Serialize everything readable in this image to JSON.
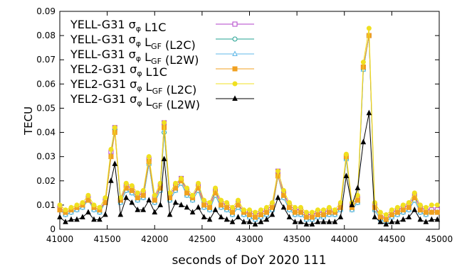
{
  "chart_data": {
    "type": "line",
    "title": "",
    "xlabel": "seconds of DoY 2020 111",
    "ylabel": "TECU",
    "xlim": [
      41000,
      45000
    ],
    "ylim": [
      0,
      0.09
    ],
    "x_ticks": [
      "41000",
      "41500",
      "42000",
      "42500",
      "43000",
      "43500",
      "44000",
      "44500",
      "45000"
    ],
    "y_ticks": [
      "0",
      "0.01",
      "0.02",
      "0.03",
      "0.04",
      "0.05",
      "0.06",
      "0.07",
      "0.08",
      "0.09"
    ],
    "grid": false,
    "legend_position": "top-left",
    "x": [
      41000,
      41060,
      41120,
      41180,
      41240,
      41300,
      41360,
      41420,
      41480,
      41540,
      41580,
      41640,
      41700,
      41760,
      41820,
      41880,
      41940,
      42000,
      42060,
      42100,
      42160,
      42220,
      42280,
      42340,
      42400,
      42460,
      42520,
      42580,
      42640,
      42700,
      42760,
      42820,
      42880,
      42940,
      43000,
      43060,
      43120,
      43180,
      43240,
      43300,
      43360,
      43420,
      43480,
      43540,
      43600,
      43660,
      43720,
      43780,
      43840,
      43900,
      43960,
      44020,
      44080,
      44140,
      44200,
      44260,
      44320,
      44380,
      44440,
      44500,
      44560,
      44620,
      44680,
      44740,
      44800,
      44860,
      44920,
      44980
    ],
    "series": [
      {
        "name": "YELL-G31 σφ L1C",
        "marker": "square-open",
        "color": "#b040c8",
        "values": [
          0.009,
          0.007,
          0.008,
          0.009,
          0.01,
          0.013,
          0.009,
          0.008,
          0.012,
          0.032,
          0.042,
          0.012,
          0.018,
          0.017,
          0.014,
          0.015,
          0.029,
          0.013,
          0.018,
          0.044,
          0.014,
          0.018,
          0.021,
          0.016,
          0.013,
          0.018,
          0.011,
          0.01,
          0.016,
          0.011,
          0.01,
          0.008,
          0.011,
          0.007,
          0.007,
          0.006,
          0.007,
          0.008,
          0.01,
          0.024,
          0.015,
          0.01,
          0.008,
          0.008,
          0.006,
          0.006,
          0.007,
          0.007,
          0.008,
          0.007,
          0.01,
          0.03,
          0.01,
          0.013,
          0.067,
          0.08,
          0.01,
          0.005,
          0.005,
          0.007,
          0.008,
          0.009,
          0.01,
          0.014,
          0.009,
          0.008,
          0.008,
          0.008
        ]
      },
      {
        "name": "YELL-G31 σφ LGF (L2C)",
        "marker": "circle-open",
        "color": "#20a090",
        "values": [
          0.008,
          0.006,
          0.007,
          0.008,
          0.009,
          0.012,
          0.008,
          0.007,
          0.011,
          0.03,
          0.041,
          0.011,
          0.016,
          0.015,
          0.012,
          0.013,
          0.027,
          0.011,
          0.016,
          0.04,
          0.012,
          0.016,
          0.019,
          0.014,
          0.012,
          0.016,
          0.009,
          0.008,
          0.014,
          0.009,
          0.008,
          0.006,
          0.009,
          0.006,
          0.005,
          0.004,
          0.005,
          0.006,
          0.008,
          0.022,
          0.013,
          0.008,
          0.006,
          0.006,
          0.004,
          0.004,
          0.005,
          0.005,
          0.006,
          0.006,
          0.008,
          0.029,
          0.008,
          0.011,
          0.066,
          0.08,
          0.008,
          0.004,
          0.003,
          0.005,
          0.006,
          0.007,
          0.008,
          0.012,
          0.007,
          0.006,
          0.007,
          0.007
        ]
      },
      {
        "name": "YELL-G31 σφ LGF (L2W)",
        "marker": "triangle-open",
        "color": "#60b8e8",
        "values": [
          0.008,
          0.006,
          0.007,
          0.008,
          0.009,
          0.012,
          0.008,
          0.007,
          0.011,
          0.03,
          0.041,
          0.011,
          0.016,
          0.015,
          0.012,
          0.013,
          0.027,
          0.011,
          0.016,
          0.041,
          0.012,
          0.016,
          0.019,
          0.014,
          0.012,
          0.016,
          0.009,
          0.008,
          0.014,
          0.009,
          0.008,
          0.006,
          0.009,
          0.006,
          0.005,
          0.004,
          0.005,
          0.006,
          0.008,
          0.022,
          0.013,
          0.008,
          0.006,
          0.006,
          0.004,
          0.004,
          0.005,
          0.005,
          0.006,
          0.006,
          0.008,
          0.029,
          0.008,
          0.011,
          0.066,
          0.08,
          0.008,
          0.004,
          0.003,
          0.005,
          0.006,
          0.007,
          0.008,
          0.012,
          0.007,
          0.006,
          0.007,
          0.007
        ]
      },
      {
        "name": "YEL2-G31 σφ L1C",
        "marker": "square-filled",
        "color": "#f0a020",
        "values": [
          0.008,
          0.007,
          0.008,
          0.009,
          0.01,
          0.012,
          0.009,
          0.008,
          0.011,
          0.03,
          0.04,
          0.012,
          0.017,
          0.016,
          0.013,
          0.014,
          0.028,
          0.012,
          0.017,
          0.042,
          0.013,
          0.017,
          0.02,
          0.015,
          0.013,
          0.017,
          0.01,
          0.009,
          0.015,
          0.01,
          0.009,
          0.007,
          0.01,
          0.007,
          0.006,
          0.005,
          0.006,
          0.007,
          0.009,
          0.022,
          0.014,
          0.009,
          0.007,
          0.007,
          0.005,
          0.005,
          0.006,
          0.006,
          0.007,
          0.007,
          0.009,
          0.03,
          0.009,
          0.012,
          0.067,
          0.08,
          0.009,
          0.005,
          0.004,
          0.006,
          0.007,
          0.008,
          0.009,
          0.013,
          0.008,
          0.007,
          0.007,
          0.007
        ]
      },
      {
        "name": "YEL2-G31 σφ LGF (L2C)",
        "marker": "circle-filled",
        "color": "#f0e020",
        "values": [
          0.01,
          0.008,
          0.009,
          0.01,
          0.011,
          0.014,
          0.01,
          0.009,
          0.013,
          0.033,
          0.042,
          0.013,
          0.019,
          0.018,
          0.015,
          0.016,
          0.03,
          0.014,
          0.019,
          0.044,
          0.015,
          0.019,
          0.021,
          0.017,
          0.014,
          0.019,
          0.012,
          0.011,
          0.017,
          0.012,
          0.011,
          0.009,
          0.012,
          0.008,
          0.008,
          0.007,
          0.008,
          0.009,
          0.011,
          0.024,
          0.016,
          0.011,
          0.009,
          0.009,
          0.007,
          0.007,
          0.008,
          0.008,
          0.009,
          0.008,
          0.011,
          0.031,
          0.011,
          0.014,
          0.069,
          0.083,
          0.011,
          0.007,
          0.006,
          0.008,
          0.009,
          0.01,
          0.011,
          0.015,
          0.01,
          0.009,
          0.01,
          0.01
        ]
      },
      {
        "name": "YEL2-G31 σφ LGF (L2W)",
        "marker": "triangle-filled",
        "color": "#000000",
        "values": [
          0.005,
          0.003,
          0.004,
          0.004,
          0.005,
          0.007,
          0.004,
          0.004,
          0.006,
          0.02,
          0.027,
          0.006,
          0.013,
          0.011,
          0.008,
          0.008,
          0.012,
          0.007,
          0.01,
          0.029,
          0.006,
          0.011,
          0.01,
          0.009,
          0.007,
          0.009,
          0.005,
          0.004,
          0.008,
          0.005,
          0.004,
          0.003,
          0.005,
          0.003,
          0.003,
          0.002,
          0.003,
          0.004,
          0.006,
          0.013,
          0.009,
          0.005,
          0.003,
          0.003,
          0.002,
          0.002,
          0.003,
          0.003,
          0.003,
          0.003,
          0.005,
          0.022,
          0.01,
          0.017,
          0.036,
          0.048,
          0.005,
          0.003,
          0.002,
          0.003,
          0.003,
          0.004,
          0.005,
          0.008,
          0.004,
          0.003,
          0.004,
          0.004
        ]
      }
    ]
  },
  "legend": [
    {
      "pre": "YELL-G31 σ",
      "sub": "φ",
      "mid": " L1C",
      "sub2": "",
      "post": ""
    },
    {
      "pre": "YELL-G31 σ",
      "sub": "φ",
      "mid": " L",
      "sub2": "GF",
      "post": " (L2C)"
    },
    {
      "pre": "YELL-G31 σ",
      "sub": "φ",
      "mid": " L",
      "sub2": "GF",
      "post": " (L2W)"
    },
    {
      "pre": "YEL2-G31 σ",
      "sub": "φ",
      "mid": " L1C",
      "sub2": "",
      "post": ""
    },
    {
      "pre": "YEL2-G31 σ",
      "sub": "φ",
      "mid": " L",
      "sub2": "GF",
      "post": " (L2C)"
    },
    {
      "pre": "YEL2-G31 σ",
      "sub": "φ",
      "mid": " L",
      "sub2": "GF",
      "post": " (L2W)"
    }
  ]
}
